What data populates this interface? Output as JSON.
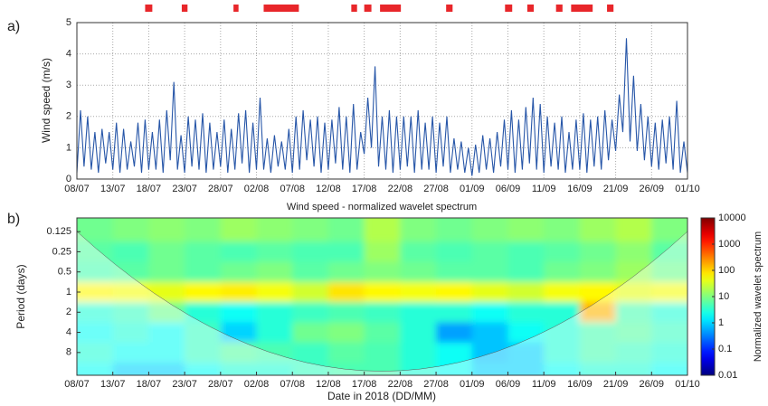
{
  "chart_data": [
    {
      "type": "line",
      "panel": "a)",
      "ylabel": "Wind speed (m/s)",
      "color": "#2756a8",
      "grid": true,
      "xlim": [
        0,
        85
      ],
      "ylim": [
        0,
        5
      ],
      "yticks": [
        0,
        1,
        2,
        3,
        4,
        5
      ],
      "xticks": [
        {
          "value": 0,
          "label": "08/07"
        },
        {
          "value": 5,
          "label": "13/07"
        },
        {
          "value": 10,
          "label": "18/07"
        },
        {
          "value": 15,
          "label": "23/07"
        },
        {
          "value": 20,
          "label": "28/07"
        },
        {
          "value": 25,
          "label": "02/08"
        },
        {
          "value": 30,
          "label": "07/08"
        },
        {
          "value": 35,
          "label": "12/08"
        },
        {
          "value": 40,
          "label": "17/08"
        },
        {
          "value": 45,
          "label": "22/08"
        },
        {
          "value": 50,
          "label": "27/08"
        },
        {
          "value": 55,
          "label": "01/09"
        },
        {
          "value": 60,
          "label": "06/09"
        },
        {
          "value": 65,
          "label": "11/09"
        },
        {
          "value": 70,
          "label": "16/09"
        },
        {
          "value": 75,
          "label": "21/09"
        },
        {
          "value": 80,
          "label": "26/09"
        },
        {
          "value": 85,
          "label": "01/10"
        }
      ],
      "spans": [
        [
          9.5,
          10.5
        ],
        [
          14.6,
          15.4
        ],
        [
          21.8,
          22.5
        ],
        [
          26,
          30.9
        ],
        [
          38.2,
          39
        ],
        [
          40,
          41
        ],
        [
          42.2,
          45.1
        ],
        [
          51.4,
          52.3
        ],
        [
          59.6,
          60.6
        ],
        [
          62.7,
          63.6
        ],
        [
          66.7,
          67.6
        ],
        [
          68.8,
          71.8
        ],
        [
          73.8,
          74.7
        ]
      ],
      "span_color": "#e8262a",
      "x": [
        0,
        0.5,
        1,
        1.5,
        2,
        2.5,
        3,
        3.5,
        4,
        4.5,
        5,
        5.5,
        6,
        6.5,
        7,
        7.5,
        8,
        8.5,
        9,
        9.5,
        10,
        10.5,
        11,
        11.5,
        12,
        12.5,
        13,
        13.5,
        14,
        14.5,
        15,
        15.5,
        16,
        16.5,
        17,
        17.5,
        18,
        18.5,
        19,
        19.5,
        20,
        20.5,
        21,
        21.5,
        22,
        22.5,
        23,
        23.5,
        24,
        24.5,
        25,
        25.5,
        26,
        26.5,
        27,
        27.5,
        28,
        28.5,
        29,
        29.5,
        30,
        30.5,
        31,
        31.5,
        32,
        32.5,
        33,
        33.5,
        34,
        34.5,
        35,
        35.5,
        36,
        36.5,
        37,
        37.5,
        38,
        38.5,
        39,
        39.5,
        40,
        40.5,
        41,
        41.5,
        42,
        42.5,
        43,
        43.5,
        44,
        44.5,
        45,
        45.5,
        46,
        46.5,
        47,
        47.5,
        48,
        48.5,
        49,
        49.5,
        50,
        50.5,
        51,
        51.5,
        52,
        52.5,
        53,
        53.5,
        54,
        54.5,
        55,
        55.5,
        56,
        56.5,
        57,
        57.5,
        58,
        58.5,
        59,
        59.5,
        60,
        60.5,
        61,
        61.5,
        62,
        62.5,
        63,
        63.5,
        64,
        64.5,
        65,
        65.5,
        66,
        66.5,
        67,
        67.5,
        68,
        68.5,
        69,
        69.5,
        70,
        70.5,
        71,
        71.5,
        72,
        72.5,
        73,
        73.5,
        74,
        74.5,
        75,
        75.5,
        76,
        76.5,
        77,
        77.5,
        78,
        78.5,
        79,
        79.5,
        80,
        80.5,
        81,
        81.5,
        82,
        82.5,
        83,
        83.5,
        84,
        84.5,
        85
      ],
      "values": [
        0.2,
        2.2,
        0.4,
        2.0,
        0.3,
        1.5,
        0.2,
        1.6,
        0.5,
        1.5,
        0.3,
        1.8,
        0.2,
        1.6,
        0.3,
        1.2,
        0.4,
        1.8,
        0.2,
        1.9,
        0.3,
        1.5,
        0.3,
        1.9,
        0.2,
        2.2,
        0.6,
        3.1,
        0.3,
        1.4,
        0.2,
        2.0,
        0.4,
        1.9,
        0.3,
        2.1,
        0.2,
        1.8,
        0.3,
        1.5,
        0.4,
        1.9,
        0.2,
        1.6,
        0.3,
        2.1,
        0.5,
        2.2,
        0.2,
        1.8,
        0.3,
        2.6,
        0.3,
        1.3,
        0.2,
        1.4,
        0.4,
        1.2,
        0.3,
        1.6,
        0.2,
        2.0,
        0.3,
        2.2,
        0.6,
        1.9,
        0.4,
        2.0,
        0.2,
        1.8,
        0.3,
        1.9,
        0.5,
        2.3,
        0.3,
        2.0,
        0.2,
        2.4,
        0.3,
        1.5,
        0.8,
        2.6,
        1.0,
        3.6,
        0.4,
        2.0,
        0.3,
        2.2,
        0.2,
        2.0,
        0.3,
        2.0,
        0.4,
        2.0,
        0.2,
        2.2,
        0.3,
        1.8,
        0.3,
        2.0,
        0.2,
        1.8,
        0.4,
        2.0,
        0.2,
        1.3,
        0.3,
        1.2,
        0.2,
        1.0,
        0.1,
        1.1,
        0.2,
        1.4,
        0.3,
        1.3,
        0.2,
        1.5,
        0.4,
        1.9,
        0.3,
        2.2,
        0.2,
        1.9,
        0.3,
        2.3,
        0.5,
        2.6,
        0.3,
        2.4,
        0.2,
        2.0,
        0.4,
        1.8,
        0.3,
        2.0,
        0.2,
        1.5,
        0.3,
        1.9,
        0.3,
        2.1,
        0.2,
        1.9,
        0.4,
        2.0,
        0.3,
        2.2,
        0.6,
        1.9,
        0.9,
        2.7,
        1.5,
        4.5,
        1.2,
        3.3,
        0.9,
        2.4,
        0.6,
        2.0,
        0.4,
        1.8,
        0.3,
        1.9,
        0.5,
        2.0,
        0.3,
        2.5,
        0.2,
        1.2,
        0.2
      ]
    },
    {
      "type": "heatmap",
      "panel": "b)",
      "title": "Wind speed - normalized wavelet spectrum",
      "xlabel": "Date in 2018 (DD/MM)",
      "ylabel": "Period (days)",
      "log_y": true,
      "colormap": "jet",
      "xlim": [
        0,
        85
      ],
      "ylim": [
        0.078,
        17.5
      ],
      "xticks": [
        {
          "value": 0,
          "label": "08/07"
        },
        {
          "value": 5,
          "label": "13/07"
        },
        {
          "value": 10,
          "label": "18/07"
        },
        {
          "value": 15,
          "label": "23/07"
        },
        {
          "value": 20,
          "label": "28/07"
        },
        {
          "value": 25,
          "label": "02/08"
        },
        {
          "value": 30,
          "label": "07/08"
        },
        {
          "value": 35,
          "label": "12/08"
        },
        {
          "value": 40,
          "label": "17/08"
        },
        {
          "value": 45,
          "label": "22/08"
        },
        {
          "value": 50,
          "label": "27/08"
        },
        {
          "value": 55,
          "label": "01/09"
        },
        {
          "value": 60,
          "label": "06/09"
        },
        {
          "value": 65,
          "label": "11/09"
        },
        {
          "value": 70,
          "label": "16/09"
        },
        {
          "value": 75,
          "label": "21/09"
        },
        {
          "value": 80,
          "label": "26/09"
        },
        {
          "value": 85,
          "label": "01/10"
        }
      ],
      "yticks": [
        0.125,
        0.25,
        0.5,
        1,
        2,
        4,
        8
      ],
      "x": [
        2.5,
        7.5,
        12.5,
        17.5,
        22.5,
        27.5,
        32.5,
        37.5,
        42.5,
        47.5,
        52.5,
        57.5,
        62.5,
        67.5,
        72.5,
        77.5,
        82.5
      ],
      "y": [
        0.125,
        0.25,
        0.5,
        1,
        2,
        4,
        8,
        16
      ],
      "z": [
        [
          8,
          10,
          12,
          10,
          15,
          12,
          10,
          8,
          20,
          10,
          8,
          10,
          12,
          10,
          15,
          20,
          10
        ],
        [
          6,
          5,
          8,
          6,
          5,
          6,
          5,
          5,
          15,
          6,
          5,
          6,
          5,
          6,
          8,
          12,
          6
        ],
        [
          5,
          6,
          8,
          6,
          8,
          10,
          6,
          8,
          10,
          8,
          6,
          6,
          5,
          8,
          10,
          15,
          8
        ],
        [
          60,
          50,
          40,
          60,
          70,
          50,
          30,
          80,
          60,
          50,
          60,
          40,
          30,
          50,
          60,
          40,
          50
        ],
        [
          3,
          4,
          8,
          3,
          2,
          3,
          4,
          5,
          4,
          3,
          3,
          2,
          3,
          3,
          150,
          5,
          3
        ],
        [
          2,
          3,
          2,
          4,
          1,
          3,
          8,
          10,
          6,
          3,
          0.5,
          0.8,
          2,
          3,
          5,
          6,
          4
        ],
        [
          3,
          2,
          2,
          4,
          6,
          5,
          4,
          6,
          5,
          3,
          2,
          0.8,
          1,
          3,
          5,
          4,
          3
        ],
        [
          2,
          1,
          1,
          2,
          3,
          3,
          4,
          5,
          5,
          3,
          2,
          1,
          1,
          2,
          3,
          3,
          2
        ]
      ],
      "colorbar": {
        "label": "Normalized wavelet spectrum",
        "lim": [
          0.01,
          10000
        ],
        "ticks": [
          0.01,
          0.1,
          1,
          10,
          100,
          1000,
          10000
        ]
      }
    }
  ]
}
